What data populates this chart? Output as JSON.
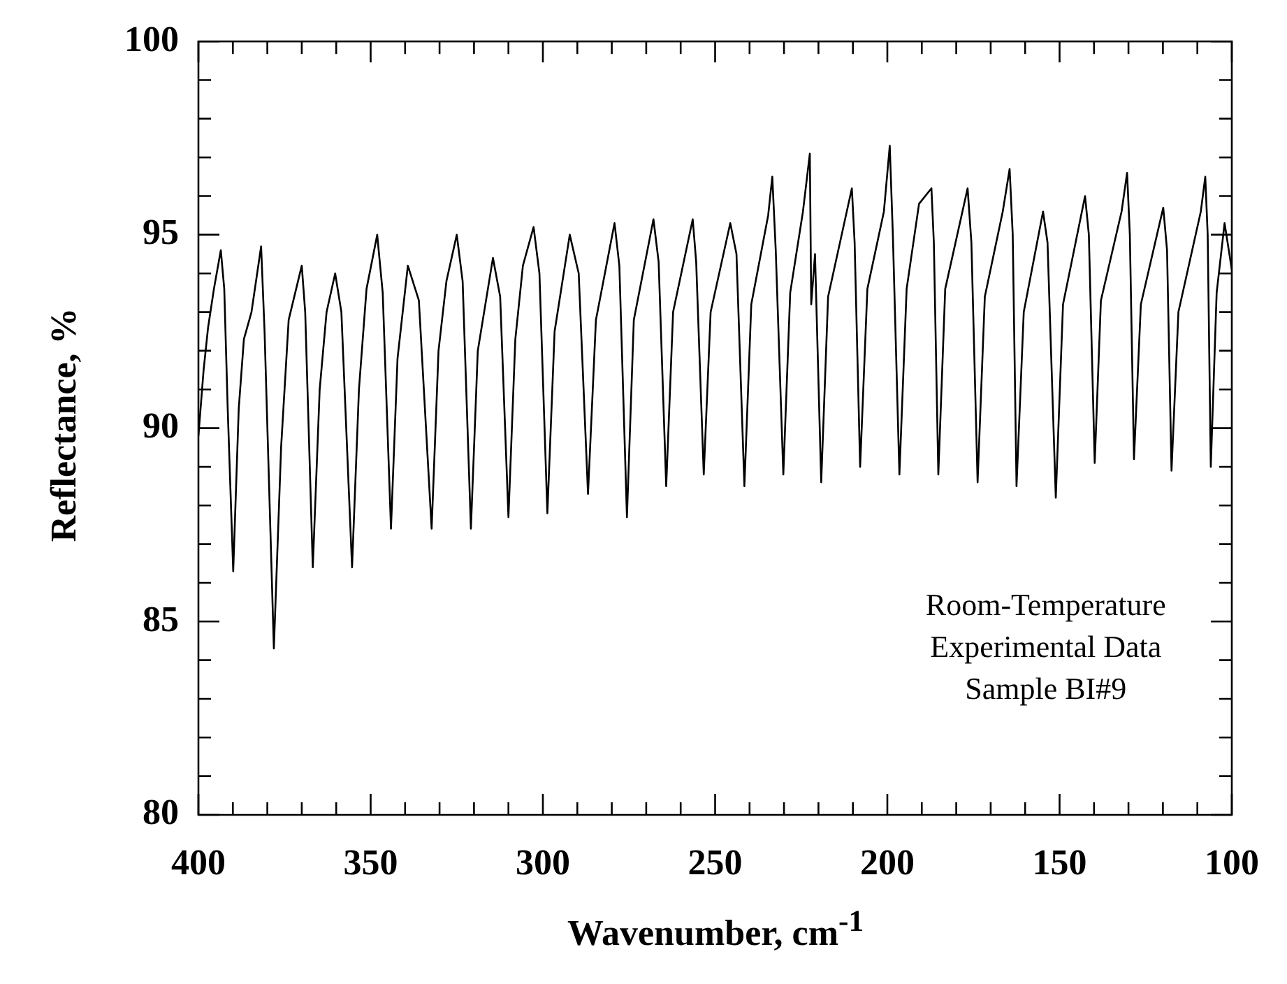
{
  "chart_data": {
    "type": "line",
    "xlabel": "Wavenumber, cm$^{-1}$",
    "ylabel": "Reflectance, %",
    "annotations": [
      "Room-Temperature",
      "Experimental Data",
      "Sample BI#9"
    ],
    "xlim": [
      400,
      100
    ],
    "ylim": [
      80,
      100
    ],
    "xticks": [
      400,
      {
        "value": 390,
        "label": null
      },
      {
        "value": 380,
        "label": null
      },
      {
        "value": 370,
        "label": null
      },
      {
        "value": 360,
        "label": null
      },
      350,
      {
        "value": 340,
        "label": null
      },
      {
        "value": 330,
        "label": null
      },
      {
        "value": 320,
        "label": null
      },
      {
        "value": 310,
        "label": null
      },
      300,
      {
        "value": 290,
        "label": null
      },
      {
        "value": 280,
        "label": null
      },
      {
        "value": 270,
        "label": null
      },
      {
        "value": 260,
        "label": null
      },
      250,
      {
        "value": 240,
        "label": null
      },
      {
        "value": 230,
        "label": null
      },
      {
        "value": 220,
        "label": null
      },
      {
        "value": 210,
        "label": null
      },
      200,
      {
        "value": 190,
        "label": null
      },
      {
        "value": 180,
        "label": null
      },
      {
        "value": 170,
        "label": null
      },
      {
        "value": 160,
        "label": null
      },
      150,
      {
        "value": 140,
        "label": null
      },
      {
        "value": 130,
        "label": null
      },
      {
        "value": 120,
        "label": null
      },
      {
        "value": 110,
        "label": null
      },
      100
    ],
    "yticks": [
      80,
      {
        "value": 81,
        "label": null
      },
      {
        "value": 82,
        "label": null
      },
      {
        "value": 83,
        "label": null
      },
      {
        "value": 84,
        "label": null
      },
      85,
      {
        "value": 86,
        "label": null
      },
      {
        "value": 87,
        "label": null
      },
      {
        "value": 88,
        "label": null
      },
      {
        "value": 89,
        "label": null
      },
      90,
      {
        "value": 91,
        "label": null
      },
      {
        "value": 92,
        "label": null
      },
      {
        "value": 93,
        "label": null
      },
      {
        "value": 94,
        "label": null
      },
      95,
      {
        "value": 96,
        "label": null
      },
      {
        "value": 97,
        "label": null
      },
      {
        "value": 98,
        "label": null
      },
      {
        "value": 99,
        "label": null
      },
      100
    ],
    "grid": false,
    "legend": false,
    "marker": "none",
    "line_style": "solid",
    "series": [
      {
        "color": "#000000",
        "x": [
          400,
          398.5,
          397.2,
          395.5,
          393.5,
          392.5,
          391.5,
          389.9,
          388.3,
          386.8,
          384.6,
          381.8,
          380.8,
          378.1,
          376,
          373.8,
          370.0,
          369.0,
          366.8,
          364.8,
          362.8,
          360.3,
          358.5,
          355.4,
          353.4,
          351.2,
          348.1,
          346.5,
          344.1,
          342.2,
          339.2,
          336.0,
          332.3,
          330.3,
          328.0,
          325.0,
          323.3,
          320.9,
          318.9,
          314.5,
          312.4,
          310.0,
          308.0,
          305.8,
          302.7,
          301.0,
          298.7,
          296.6,
          292.2,
          289.6,
          286.9,
          284.6,
          279.2,
          277.8,
          275.6,
          273.6,
          267.9,
          266.4,
          264.2,
          262.2,
          256.5,
          255.5,
          253.3,
          251.3,
          245.6,
          243.8,
          241.5,
          239.5,
          234.6,
          233.4,
          232.4,
          230.2,
          228.2,
          224.5,
          222.5,
          222.1,
          221.0,
          219.2,
          217.2,
          210.3,
          209.5,
          207.9,
          205.8,
          201,
          199.3,
          198.4,
          196.5,
          194.4,
          190.8,
          187.2,
          186.5,
          185.2,
          183.2,
          176.7,
          175.6,
          173.8,
          171.7,
          166.5,
          164.5,
          163.6,
          162.5,
          160.4,
          154.8,
          153.5,
          151.1,
          149.0,
          142.6,
          141.5,
          139.8,
          138.0,
          132,
          130.4,
          129.6,
          128.4,
          126.4,
          119.9,
          118.8,
          117.5,
          115.5,
          109,
          107.7,
          107.0,
          106.1,
          104.4,
          102.1,
          100.0
        ],
        "values": [
          89.8,
          91.5,
          92.6,
          93.6,
          94.6,
          93.6,
          90.5,
          86.3,
          90.5,
          92.3,
          93.0,
          94.7,
          92.5,
          84.3,
          89.5,
          92.8,
          94.2,
          93.0,
          86.4,
          91.0,
          93.0,
          94.0,
          93.0,
          86.4,
          91.0,
          93.6,
          95.0,
          93.5,
          87.4,
          91.8,
          94.2,
          93.3,
          87.4,
          92.0,
          93.8,
          95.0,
          93.8,
          87.4,
          92.0,
          94.4,
          93.4,
          87.7,
          92.3,
          94.2,
          95.2,
          94.0,
          87.8,
          92.5,
          95.0,
          94.0,
          88.3,
          92.8,
          95.3,
          94.2,
          87.7,
          92.8,
          95.4,
          94.3,
          88.5,
          93.0,
          95.4,
          94.3,
          88.8,
          93.0,
          95.3,
          94.5,
          88.5,
          93.2,
          95.5,
          96.5,
          94.6,
          88.8,
          93.5,
          95.6,
          97.1,
          93.2,
          94.5,
          88.6,
          93.4,
          96.2,
          94.8,
          89.0,
          93.6,
          95.6,
          97.3,
          95.0,
          88.8,
          93.6,
          95.8,
          96.2,
          94.8,
          88.8,
          93.6,
          96.2,
          94.8,
          88.6,
          93.4,
          95.6,
          96.7,
          95.0,
          88.5,
          93.0,
          95.6,
          94.8,
          88.2,
          93.2,
          96.0,
          95.0,
          89.1,
          93.3,
          95.6,
          96.6,
          95.0,
          89.2,
          93.2,
          95.7,
          94.6,
          88.9,
          93.0,
          95.6,
          96.5,
          95.0,
          89.0,
          93.5,
          95.3,
          94.1
        ]
      }
    ]
  }
}
